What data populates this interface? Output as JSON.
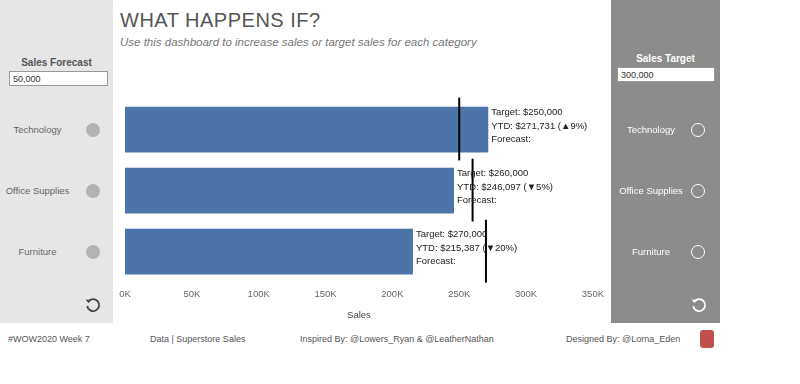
{
  "dashboard": {
    "title": "WHAT HAPPENS IF?",
    "subtitle": "Use this dashboard to increase sales or target sales for each category"
  },
  "left_panel": {
    "title": "Sales Forecast",
    "input": "50,000"
  },
  "right_panel": {
    "title": "Sales Target",
    "input": "300,000"
  },
  "footer": [
    "#WOW2020 Week 7",
    "Data | Superstore Sales",
    "Inspired By: @Lowers_Ryan & @LeatherNathan",
    "Designed By: @Lorna_Eden"
  ],
  "chart_data": {
    "type": "bar",
    "orientation": "horizontal",
    "categories": [
      "Technology",
      "Office Supplies",
      "Furniture"
    ],
    "values": [
      271731,
      246097,
      215387
    ],
    "color": "#4c74a8",
    "targets": [
      250000,
      260000,
      270000
    ],
    "annotations": [
      [
        "Target: $250,000",
        "YTD: $271,731 (▲9%)",
        "Forecast:"
      ],
      [
        "Target: $260,000",
        "YTD: $246,097 (▼5%)",
        "Forecast:"
      ],
      [
        "Target: $270,000",
        "YTD: $215,387 (▼20%)",
        "Forecast:"
      ]
    ],
    "xlabel": "Sales",
    "xlim": [
      0,
      350000
    ],
    "xticks": [
      {
        "value": 0,
        "label": "0K"
      },
      {
        "value": 50000,
        "label": "50K"
      },
      {
        "value": 100000,
        "label": "100K"
      },
      {
        "value": 150000,
        "label": "150K"
      },
      {
        "value": 200000,
        "label": "200K"
      },
      {
        "value": 250000,
        "label": "250K"
      },
      {
        "value": 300000,
        "label": "300K"
      },
      {
        "value": 350000,
        "label": "350K"
      }
    ],
    "grid": false,
    "tick_labels": "x"
  }
}
